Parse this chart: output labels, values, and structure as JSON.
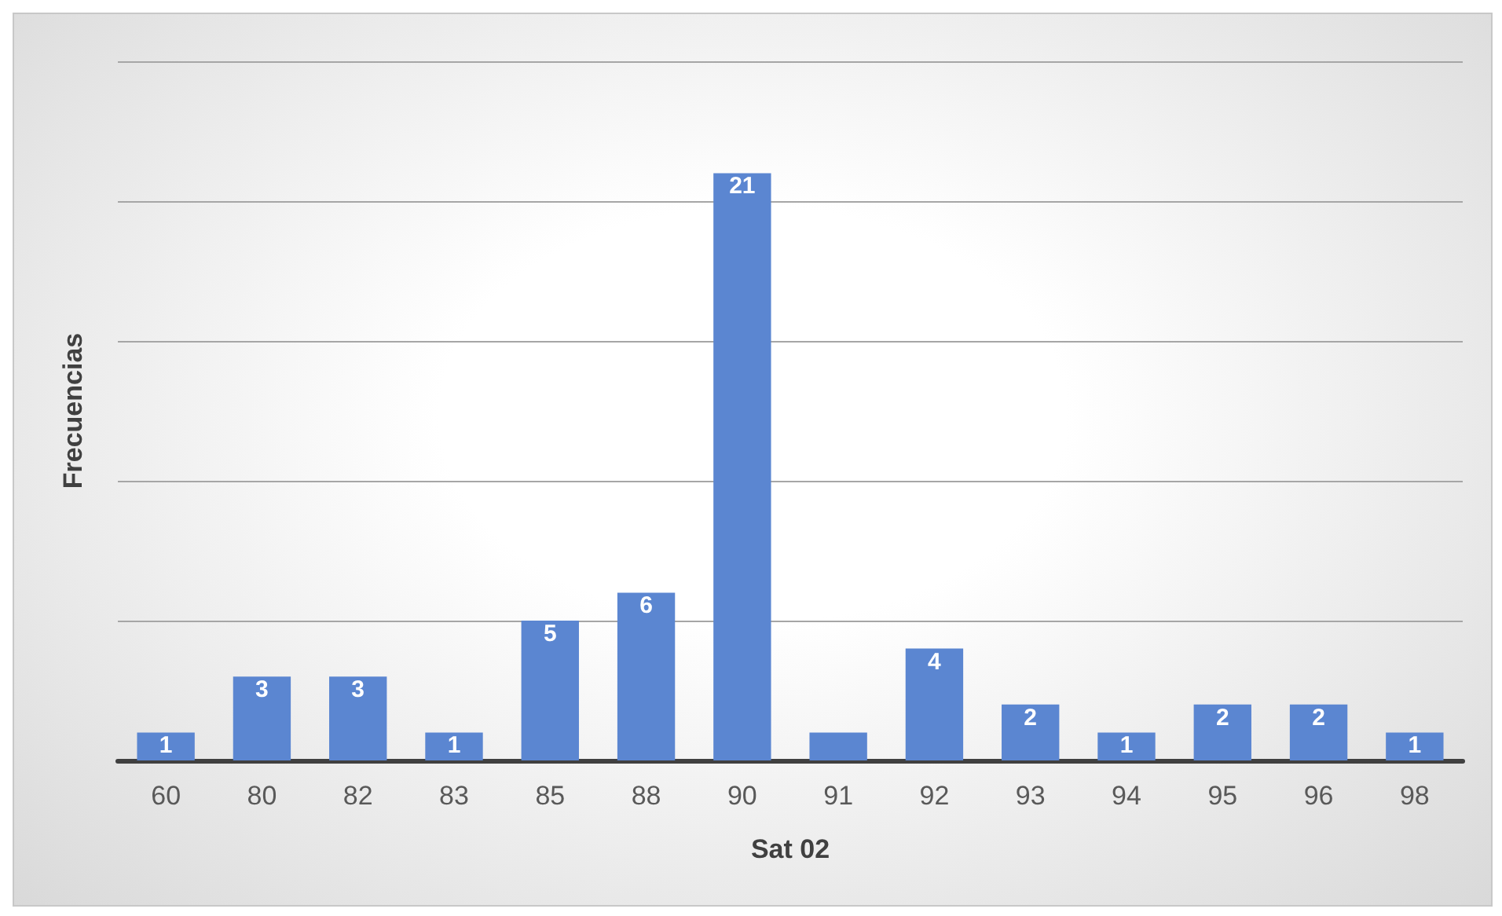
{
  "chart_data": {
    "type": "bar",
    "xlabel": "Sat 02",
    "ylabel": "Frecuencias",
    "categories": [
      "60",
      "80",
      "82",
      "83",
      "85",
      "88",
      "90",
      "91",
      "92",
      "93",
      "94",
      "95",
      "96",
      "98"
    ],
    "values": [
      1,
      3,
      3,
      1,
      5,
      6,
      21,
      1,
      4,
      2,
      1,
      2,
      2,
      1
    ],
    "value_labels": [
      "1",
      "3",
      "3",
      "1",
      "5",
      "6",
      "21",
      null,
      "4",
      "2",
      "1",
      "2",
      "2",
      "1"
    ],
    "color": "#5b86d1",
    "ylim": [
      0,
      25
    ],
    "yticks": [
      {
        "value": 0,
        "label": null
      },
      {
        "value": 5,
        "label": null
      },
      {
        "value": 10,
        "label": null
      },
      {
        "value": 15,
        "label": null
      },
      {
        "value": 20,
        "label": null
      },
      {
        "value": 25,
        "label": null
      }
    ],
    "grid": "y",
    "tick_labels": "x"
  }
}
